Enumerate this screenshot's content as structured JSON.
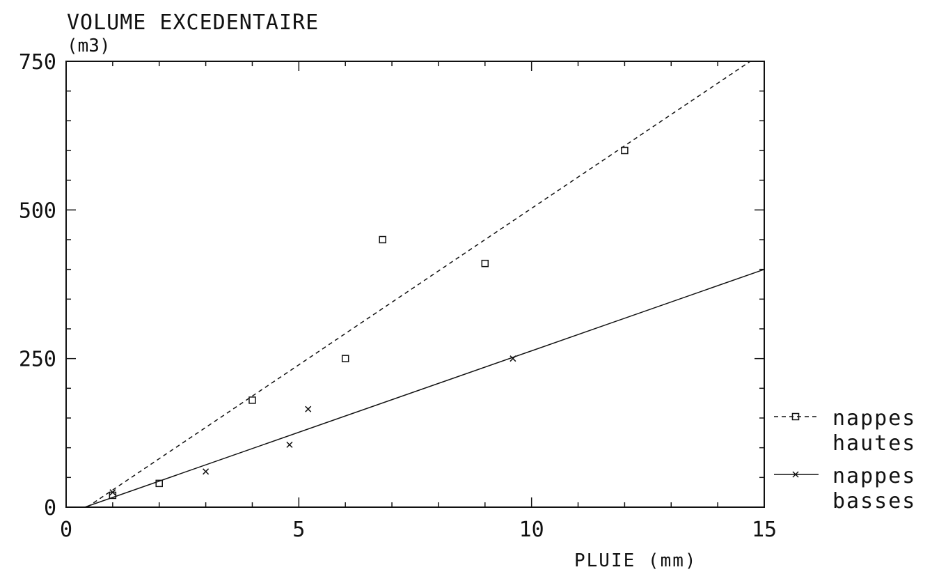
{
  "chart_data": {
    "type": "scatter",
    "title": "VOLUME EXCEDENTAIRE",
    "ylabel_unit": "(m3)",
    "xlabel": "PLUIE (mm)",
    "xlim": [
      0,
      15
    ],
    "ylim": [
      0,
      750
    ],
    "x_ticks": [
      0,
      5,
      10,
      15
    ],
    "x_tick_labels": [
      "0",
      "5",
      "10",
      "15"
    ],
    "y_ticks": [
      0,
      250,
      500,
      750
    ],
    "y_tick_labels": [
      "0",
      "250",
      "500",
      "750"
    ],
    "grid": false,
    "legend_position": "right",
    "series": [
      {
        "name_lines": [
          "nappes",
          "hautes"
        ],
        "marker": "square",
        "line_style": "dashed",
        "color": "#111111",
        "points": [
          [
            1.0,
            20
          ],
          [
            2.0,
            40
          ],
          [
            4.0,
            180
          ],
          [
            6.0,
            250
          ],
          [
            6.8,
            450
          ],
          [
            9.0,
            410
          ],
          [
            12.0,
            600
          ]
        ],
        "fit_line": [
          [
            0.45,
            0
          ],
          [
            14.7,
            750
          ]
        ]
      },
      {
        "name_lines": [
          "nappes",
          "basses"
        ],
        "marker": "x",
        "line_style": "solid",
        "color": "#111111",
        "points": [
          [
            1.0,
            25
          ],
          [
            3.0,
            60
          ],
          [
            4.8,
            105
          ],
          [
            5.2,
            165
          ],
          [
            9.6,
            250
          ]
        ],
        "fit_line": [
          [
            0.4,
            0
          ],
          [
            15,
            400
          ]
        ]
      }
    ]
  }
}
